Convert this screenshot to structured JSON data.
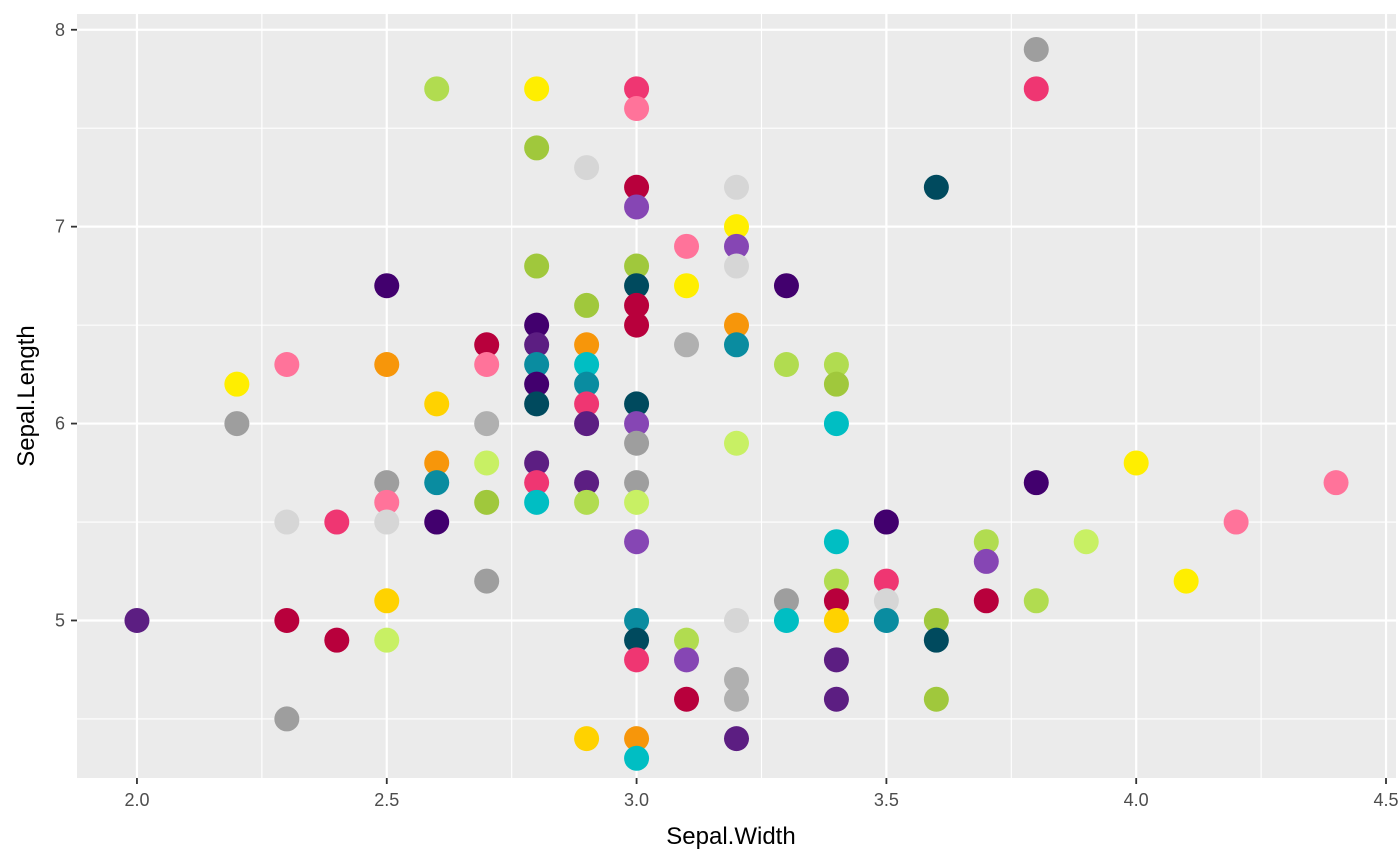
{
  "chart_data": {
    "type": "scatter",
    "xlabel": "Sepal.Width",
    "ylabel": "Sepal.Length",
    "xlim": [
      1.88,
      4.52
    ],
    "ylim": [
      4.2,
      8.08
    ],
    "x_ticks": [
      2.0,
      2.5,
      3.0,
      3.5,
      4.0,
      4.5
    ],
    "x_tick_labels": [
      "2.0",
      "2.5",
      "3.0",
      "3.5",
      "4.0",
      "4.5"
    ],
    "y_ticks": [
      5,
      6,
      7,
      8
    ],
    "y_tick_labels": [
      "5",
      "6",
      "7",
      "8"
    ],
    "grid": true,
    "panel_background": "#ebebeb",
    "grid_color": "#ffffff",
    "legend": "none",
    "points": [
      {
        "x": 3.8,
        "y": 7.9,
        "color": "#9e9e9e"
      },
      {
        "x": 3.8,
        "y": 7.7,
        "color": "#ef3672"
      },
      {
        "x": 2.6,
        "y": 7.7,
        "color": "#b1dc50"
      },
      {
        "x": 2.8,
        "y": 7.7,
        "color": "#ffee00"
      },
      {
        "x": 3.0,
        "y": 7.7,
        "color": "#ef3672"
      },
      {
        "x": 3.0,
        "y": 7.6,
        "color": "#ff739a"
      },
      {
        "x": 2.8,
        "y": 7.4,
        "color": "#a0c83c"
      },
      {
        "x": 2.9,
        "y": 7.3,
        "color": "#d6d6d6"
      },
      {
        "x": 3.0,
        "y": 7.2,
        "color": "#b8003c"
      },
      {
        "x": 3.2,
        "y": 7.2,
        "color": "#d6d6d6"
      },
      {
        "x": 3.6,
        "y": 7.2,
        "color": "#004a5e"
      },
      {
        "x": 3.0,
        "y": 7.1,
        "color": "#8646b4"
      },
      {
        "x": 3.2,
        "y": 7.0,
        "color": "#ffee00"
      },
      {
        "x": 3.1,
        "y": 6.9,
        "color": "#ff739a"
      },
      {
        "x": 3.2,
        "y": 6.9,
        "color": "#8646b4"
      },
      {
        "x": 2.8,
        "y": 6.8,
        "color": "#a0c83c"
      },
      {
        "x": 3.0,
        "y": 6.8,
        "color": "#a0c83c"
      },
      {
        "x": 3.2,
        "y": 6.8,
        "color": "#d6d6d6"
      },
      {
        "x": 2.5,
        "y": 6.7,
        "color": "#42006e"
      },
      {
        "x": 3.0,
        "y": 6.7,
        "color": "#004a5e"
      },
      {
        "x": 3.1,
        "y": 6.7,
        "color": "#ffee00"
      },
      {
        "x": 3.3,
        "y": 6.7,
        "color": "#42006e"
      },
      {
        "x": 2.9,
        "y": 6.6,
        "color": "#a0c83c"
      },
      {
        "x": 3.0,
        "y": 6.6,
        "color": "#b8003c"
      },
      {
        "x": 2.8,
        "y": 6.5,
        "color": "#42006e"
      },
      {
        "x": 3.0,
        "y": 6.5,
        "color": "#b8003c"
      },
      {
        "x": 3.2,
        "y": 6.5,
        "color": "#f7960a"
      },
      {
        "x": 2.7,
        "y": 6.4,
        "color": "#b8003c"
      },
      {
        "x": 2.8,
        "y": 6.4,
        "color": "#5c1e82"
      },
      {
        "x": 2.9,
        "y": 6.4,
        "color": "#f7960a"
      },
      {
        "x": 3.1,
        "y": 6.4,
        "color": "#b0b0b0"
      },
      {
        "x": 3.2,
        "y": 6.4,
        "color": "#0a8ca0"
      },
      {
        "x": 2.3,
        "y": 6.3,
        "color": "#ff739a"
      },
      {
        "x": 2.5,
        "y": 6.3,
        "color": "#f7960a"
      },
      {
        "x": 2.7,
        "y": 6.3,
        "color": "#ff739a"
      },
      {
        "x": 2.8,
        "y": 6.3,
        "color": "#0a8ca0"
      },
      {
        "x": 2.9,
        "y": 6.3,
        "color": "#00bec3"
      },
      {
        "x": 3.3,
        "y": 6.3,
        "color": "#b1dc50"
      },
      {
        "x": 3.4,
        "y": 6.3,
        "color": "#b1dc50"
      },
      {
        "x": 2.2,
        "y": 6.2,
        "color": "#ffee00"
      },
      {
        "x": 2.8,
        "y": 6.2,
        "color": "#42006e"
      },
      {
        "x": 2.9,
        "y": 6.2,
        "color": "#0a8ca0"
      },
      {
        "x": 3.4,
        "y": 6.2,
        "color": "#a0c83c"
      },
      {
        "x": 2.6,
        "y": 6.1,
        "color": "#ffd200"
      },
      {
        "x": 2.8,
        "y": 6.1,
        "color": "#004a5e"
      },
      {
        "x": 2.9,
        "y": 6.1,
        "color": "#ef3672"
      },
      {
        "x": 3.0,
        "y": 6.1,
        "color": "#004a5e"
      },
      {
        "x": 2.2,
        "y": 6.0,
        "color": "#9e9e9e"
      },
      {
        "x": 2.7,
        "y": 6.0,
        "color": "#b0b0b0"
      },
      {
        "x": 2.9,
        "y": 6.0,
        "color": "#5c1e82"
      },
      {
        "x": 3.0,
        "y": 6.0,
        "color": "#8646b4"
      },
      {
        "x": 3.4,
        "y": 6.0,
        "color": "#00bec3"
      },
      {
        "x": 3.0,
        "y": 5.9,
        "color": "#9e9e9e"
      },
      {
        "x": 3.2,
        "y": 5.9,
        "color": "#c8f064"
      },
      {
        "x": 2.6,
        "y": 5.8,
        "color": "#f7960a"
      },
      {
        "x": 2.7,
        "y": 5.8,
        "color": "#c8f064"
      },
      {
        "x": 2.8,
        "y": 5.8,
        "color": "#5c1e82"
      },
      {
        "x": 4.0,
        "y": 5.8,
        "color": "#ffee00"
      },
      {
        "x": 2.5,
        "y": 5.7,
        "color": "#9e9e9e"
      },
      {
        "x": 2.6,
        "y": 5.7,
        "color": "#0a8ca0"
      },
      {
        "x": 2.8,
        "y": 5.7,
        "color": "#ef3672"
      },
      {
        "x": 2.9,
        "y": 5.7,
        "color": "#5c1e82"
      },
      {
        "x": 3.0,
        "y": 5.7,
        "color": "#9e9e9e"
      },
      {
        "x": 3.8,
        "y": 5.7,
        "color": "#42006e"
      },
      {
        "x": 4.4,
        "y": 5.7,
        "color": "#ff739a"
      },
      {
        "x": 2.5,
        "y": 5.6,
        "color": "#ff739a"
      },
      {
        "x": 2.7,
        "y": 5.6,
        "color": "#a0c83c"
      },
      {
        "x": 2.8,
        "y": 5.6,
        "color": "#00bec3"
      },
      {
        "x": 2.9,
        "y": 5.6,
        "color": "#b1dc50"
      },
      {
        "x": 3.0,
        "y": 5.6,
        "color": "#c8f064"
      },
      {
        "x": 2.3,
        "y": 5.5,
        "color": "#d6d6d6"
      },
      {
        "x": 2.4,
        "y": 5.5,
        "color": "#ef3672"
      },
      {
        "x": 2.5,
        "y": 5.5,
        "color": "#d6d6d6"
      },
      {
        "x": 2.6,
        "y": 5.5,
        "color": "#42006e"
      },
      {
        "x": 3.5,
        "y": 5.5,
        "color": "#42006e"
      },
      {
        "x": 4.2,
        "y": 5.5,
        "color": "#ff739a"
      },
      {
        "x": 3.0,
        "y": 5.4,
        "color": "#8646b4"
      },
      {
        "x": 3.4,
        "y": 5.4,
        "color": "#00bec3"
      },
      {
        "x": 3.7,
        "y": 5.4,
        "color": "#b1dc50"
      },
      {
        "x": 3.9,
        "y": 5.4,
        "color": "#c8f064"
      },
      {
        "x": 3.7,
        "y": 5.3,
        "color": "#8646b4"
      },
      {
        "x": 2.7,
        "y": 5.2,
        "color": "#9e9e9e"
      },
      {
        "x": 3.4,
        "y": 5.2,
        "color": "#b1dc50"
      },
      {
        "x": 3.5,
        "y": 5.2,
        "color": "#ef3672"
      },
      {
        "x": 4.1,
        "y": 5.2,
        "color": "#ffee00"
      },
      {
        "x": 2.5,
        "y": 5.1,
        "color": "#ffd200"
      },
      {
        "x": 3.3,
        "y": 5.1,
        "color": "#9e9e9e"
      },
      {
        "x": 3.4,
        "y": 5.1,
        "color": "#b8003c"
      },
      {
        "x": 3.5,
        "y": 5.1,
        "color": "#d6d6d6"
      },
      {
        "x": 3.7,
        "y": 5.1,
        "color": "#b8003c"
      },
      {
        "x": 3.8,
        "y": 5.1,
        "color": "#b1dc50"
      },
      {
        "x": 2.0,
        "y": 5.0,
        "color": "#5c1e82"
      },
      {
        "x": 2.3,
        "y": 5.0,
        "color": "#b8003c"
      },
      {
        "x": 3.0,
        "y": 5.0,
        "color": "#0a8ca0"
      },
      {
        "x": 3.2,
        "y": 5.0,
        "color": "#d6d6d6"
      },
      {
        "x": 3.3,
        "y": 5.0,
        "color": "#00bec3"
      },
      {
        "x": 3.4,
        "y": 5.0,
        "color": "#ffd200"
      },
      {
        "x": 3.5,
        "y": 5.0,
        "color": "#0a8ca0"
      },
      {
        "x": 3.6,
        "y": 5.0,
        "color": "#a0c83c"
      },
      {
        "x": 2.4,
        "y": 4.9,
        "color": "#b8003c"
      },
      {
        "x": 2.5,
        "y": 4.9,
        "color": "#c8f064"
      },
      {
        "x": 3.0,
        "y": 4.9,
        "color": "#004a5e"
      },
      {
        "x": 3.1,
        "y": 4.9,
        "color": "#b1dc50"
      },
      {
        "x": 3.6,
        "y": 4.9,
        "color": "#004a5e"
      },
      {
        "x": 3.0,
        "y": 4.8,
        "color": "#ef3672"
      },
      {
        "x": 3.1,
        "y": 4.8,
        "color": "#8646b4"
      },
      {
        "x": 3.4,
        "y": 4.8,
        "color": "#5c1e82"
      },
      {
        "x": 3.2,
        "y": 4.7,
        "color": "#b0b0b0"
      },
      {
        "x": 3.1,
        "y": 4.6,
        "color": "#b8003c"
      },
      {
        "x": 3.2,
        "y": 4.6,
        "color": "#b0b0b0"
      },
      {
        "x": 3.4,
        "y": 4.6,
        "color": "#5c1e82"
      },
      {
        "x": 3.6,
        "y": 4.6,
        "color": "#a0c83c"
      },
      {
        "x": 2.3,
        "y": 4.5,
        "color": "#9e9e9e"
      },
      {
        "x": 2.9,
        "y": 4.4,
        "color": "#ffd200"
      },
      {
        "x": 3.0,
        "y": 4.4,
        "color": "#f7960a"
      },
      {
        "x": 3.2,
        "y": 4.4,
        "color": "#5c1e82"
      },
      {
        "x": 3.0,
        "y": 4.3,
        "color": "#00bec3"
      }
    ]
  }
}
